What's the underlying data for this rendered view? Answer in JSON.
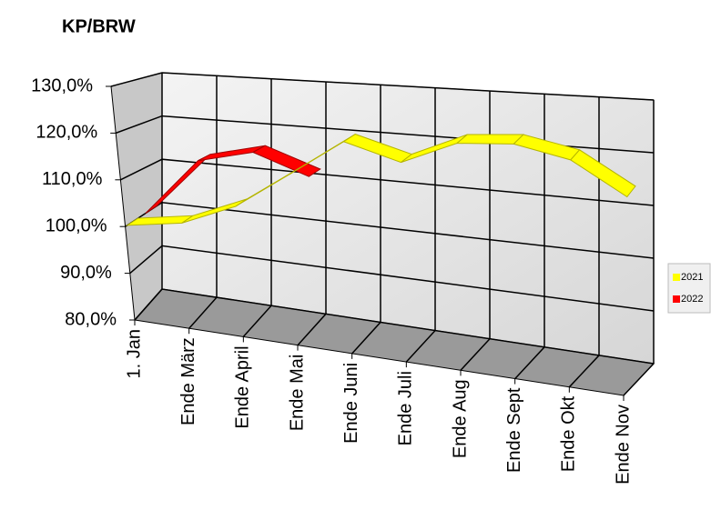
{
  "chart_data": {
    "type": "line3d",
    "title": "KP/BRW",
    "categories": [
      "1. Jan",
      "Ende März",
      "Ende April",
      "Ende Mai",
      "Ende Juni",
      "Ende Juli",
      "Ende Aug",
      "Ende Sept",
      "Ende Okt",
      "Ende Nov"
    ],
    "series": [
      {
        "name": "2021",
        "color": "#ffff00",
        "values": [
          100,
          102,
          107,
          115,
          123,
          120,
          125,
          126,
          124,
          118
        ]
      },
      {
        "name": "2022",
        "color": "#ff0000",
        "values": [
          100,
          113,
          116,
          112,
          null,
          null,
          null,
          null,
          null,
          null
        ]
      }
    ],
    "ylim": [
      80,
      130
    ],
    "yticks": [
      {
        "value": 80,
        "label": "80,0%"
      },
      {
        "value": 90,
        "label": "90,0%"
      },
      {
        "value": 100,
        "label": "100,0%"
      },
      {
        "value": 110,
        "label": "110,0%"
      },
      {
        "value": 120,
        "label": "120,0%"
      },
      {
        "value": 130,
        "label": "130,0%"
      }
    ],
    "grid": true,
    "legend": "right"
  }
}
